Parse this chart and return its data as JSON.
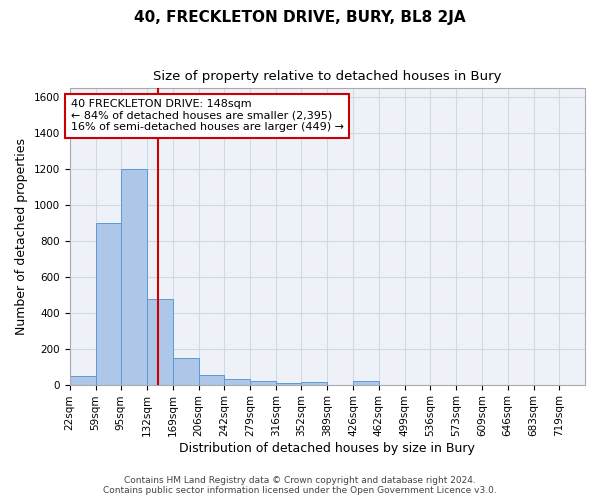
{
  "title": "40, FRECKLETON DRIVE, BURY, BL8 2JA",
  "subtitle": "Size of property relative to detached houses in Bury",
  "xlabel": "Distribution of detached houses by size in Bury",
  "ylabel": "Number of detached properties",
  "bar_edges": [
    22,
    59,
    95,
    132,
    169,
    206,
    242,
    279,
    316,
    352,
    389,
    426,
    462,
    499,
    536,
    573,
    609,
    646,
    683,
    719,
    756
  ],
  "bar_heights": [
    50,
    900,
    1200,
    475,
    150,
    55,
    30,
    20,
    10,
    15,
    0,
    20,
    0,
    0,
    0,
    0,
    0,
    0,
    0,
    0
  ],
  "bar_color": "#aec6e8",
  "bar_edge_color": "#5b9bd5",
  "grid_color": "#d0d8e8",
  "bg_color": "#eef2f8",
  "property_line_x": 148,
  "property_line_color": "#cc0000",
  "annotation_text": "40 FRECKLETON DRIVE: 148sqm\n← 84% of detached houses are smaller (2,395)\n16% of semi-detached houses are larger (449) →",
  "annotation_box_color": "#cc0000",
  "ylim": [
    0,
    1650
  ],
  "yticks": [
    0,
    200,
    400,
    600,
    800,
    1000,
    1200,
    1400,
    1600
  ],
  "footer_text": "Contains HM Land Registry data © Crown copyright and database right 2024.\nContains public sector information licensed under the Open Government Licence v3.0.",
  "title_fontsize": 11,
  "subtitle_fontsize": 9.5,
  "axis_label_fontsize": 9,
  "tick_fontsize": 7.5,
  "annotation_fontsize": 8,
  "footer_fontsize": 6.5
}
